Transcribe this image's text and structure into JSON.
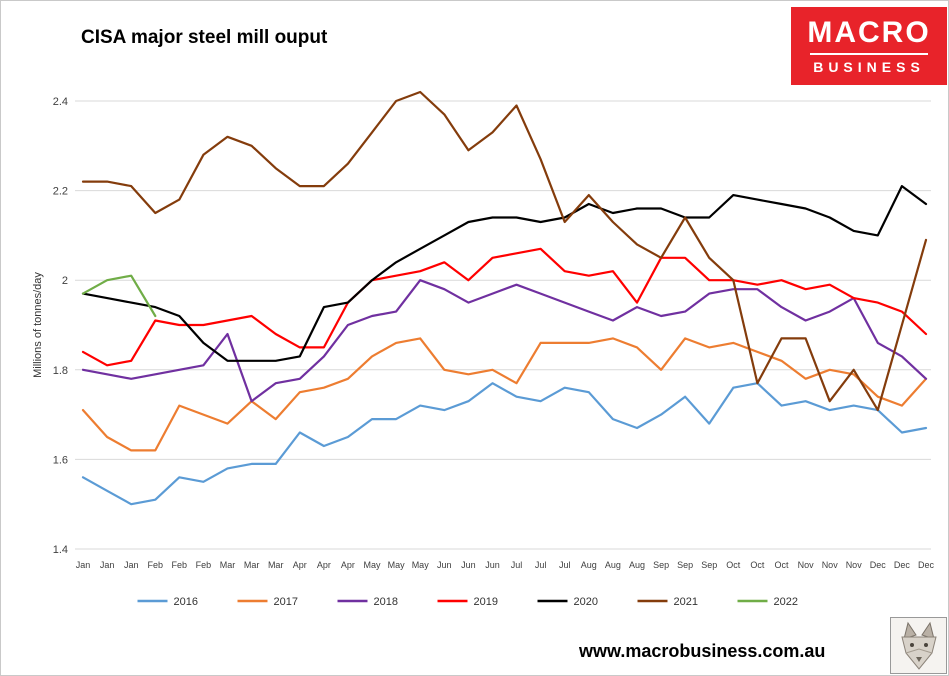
{
  "page": {
    "title": "CISA major steel mill ouput",
    "footer_url": "www.macrobusiness.com.au"
  },
  "logo": {
    "line1": "MACRO",
    "line2": "BUSINESS",
    "bg_color": "#e8232a",
    "text_color": "#ffffff"
  },
  "chart_data": {
    "type": "line",
    "title": "CISA major steel mill ouput",
    "xlabel": "",
    "ylabel": "Millions of tonnes/day",
    "ylim": [
      1.4,
      2.45
    ],
    "yticks": [
      1.4,
      1.6,
      1.8,
      2,
      2.2,
      2.4
    ],
    "ytick_labels": [
      "1.4",
      "1.6",
      "1.8",
      "2",
      "2.2",
      "2.4"
    ],
    "grid": "horizontal",
    "legend_position": "bottom",
    "categories": [
      "Jan",
      "Jan",
      "Jan",
      "Feb",
      "Feb",
      "Feb",
      "Mar",
      "Mar",
      "Mar",
      "Apr",
      "Apr",
      "Apr",
      "May",
      "May",
      "May",
      "Jun",
      "Jun",
      "Jun",
      "Jul",
      "Jul",
      "Jul",
      "Aug",
      "Aug",
      "Aug",
      "Sep",
      "Sep",
      "Sep",
      "Oct",
      "Oct",
      "Oct",
      "Nov",
      "Nov",
      "Nov",
      "Dec",
      "Dec",
      "Dec"
    ],
    "series": [
      {
        "name": "2016",
        "color": "#5b9bd5",
        "values": [
          1.56,
          1.53,
          1.5,
          1.51,
          1.56,
          1.55,
          1.58,
          1.59,
          1.59,
          1.66,
          1.63,
          1.65,
          1.69,
          1.69,
          1.72,
          1.71,
          1.73,
          1.77,
          1.74,
          1.73,
          1.76,
          1.75,
          1.69,
          1.67,
          1.7,
          1.74,
          1.68,
          1.76,
          1.77,
          1.72,
          1.73,
          1.71,
          1.72,
          1.71,
          1.66,
          1.67
        ]
      },
      {
        "name": "2017",
        "color": "#ed7d31",
        "values": [
          1.71,
          1.65,
          1.62,
          1.62,
          1.72,
          1.7,
          1.68,
          1.73,
          1.69,
          1.75,
          1.76,
          1.78,
          1.83,
          1.86,
          1.87,
          1.8,
          1.79,
          1.8,
          1.77,
          1.86,
          1.86,
          1.86,
          1.87,
          1.85,
          1.8,
          1.87,
          1.85,
          1.86,
          1.84,
          1.82,
          1.78,
          1.8,
          1.79,
          1.74,
          1.72,
          1.78
        ]
      },
      {
        "name": "2018",
        "color": "#7030a0",
        "values": [
          1.8,
          1.79,
          1.78,
          1.79,
          1.8,
          1.81,
          1.88,
          1.73,
          1.77,
          1.78,
          1.83,
          1.9,
          1.92,
          1.93,
          2.0,
          1.98,
          1.95,
          1.97,
          1.99,
          1.97,
          1.95,
          1.93,
          1.91,
          1.94,
          1.92,
          1.93,
          1.97,
          1.98,
          1.98,
          1.94,
          1.91,
          1.93,
          1.96,
          1.86,
          1.83,
          1.78
        ]
      },
      {
        "name": "2019",
        "color": "#ff0000",
        "values": [
          1.84,
          1.81,
          1.82,
          1.91,
          1.9,
          1.9,
          1.91,
          1.92,
          1.88,
          1.85,
          1.85,
          1.95,
          2.0,
          2.01,
          2.02,
          2.04,
          2.0,
          2.05,
          2.06,
          2.07,
          2.02,
          2.01,
          2.02,
          1.95,
          2.05,
          2.05,
          2.0,
          2.0,
          1.99,
          2.0,
          1.98,
          1.99,
          1.96,
          1.95,
          1.93,
          1.88
        ]
      },
      {
        "name": "2020",
        "color": "#000000",
        "values": [
          1.97,
          1.96,
          1.95,
          1.94,
          1.92,
          1.86,
          1.82,
          1.82,
          1.82,
          1.83,
          1.94,
          1.95,
          2.0,
          2.04,
          2.07,
          2.1,
          2.13,
          2.14,
          2.14,
          2.13,
          2.14,
          2.17,
          2.15,
          2.16,
          2.16,
          2.14,
          2.14,
          2.19,
          2.18,
          2.17,
          2.16,
          2.14,
          2.11,
          2.1,
          2.21,
          2.17
        ]
      },
      {
        "name": "2021",
        "color": "#843c0c",
        "values": [
          2.22,
          2.22,
          2.21,
          2.15,
          2.18,
          2.28,
          2.32,
          2.3,
          2.25,
          2.21,
          2.21,
          2.26,
          2.33,
          2.4,
          2.42,
          2.37,
          2.29,
          2.33,
          2.39,
          2.27,
          2.13,
          2.19,
          2.13,
          2.08,
          2.05,
          2.14,
          2.05,
          2.0,
          1.77,
          1.87,
          1.87,
          1.73,
          1.8,
          1.71,
          1.9,
          2.09
        ]
      },
      {
        "name": "2022",
        "color": "#70ad47",
        "values": [
          1.97,
          2.0,
          2.01,
          1.92,
          null,
          null,
          null,
          null,
          null,
          null,
          null,
          null,
          null,
          null,
          null,
          null,
          null,
          null,
          null,
          null,
          null,
          null,
          null,
          null,
          null,
          null,
          null,
          null,
          null,
          null,
          null,
          null,
          null,
          null,
          null,
          null
        ]
      }
    ]
  }
}
